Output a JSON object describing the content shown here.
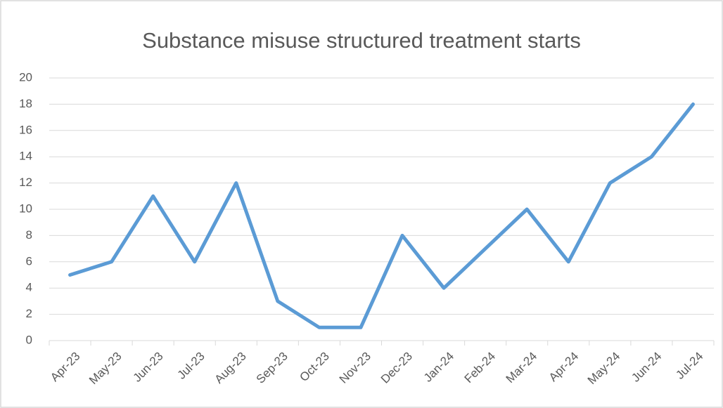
{
  "chart_data": {
    "type": "line",
    "title": "Substance misuse structured treatment starts",
    "categories": [
      "Apr-23",
      "May-23",
      "Jun-23",
      "Jul-23",
      "Aug-23",
      "Sep-23",
      "Oct-23",
      "Nov-23",
      "Dec-23",
      "Jan-24",
      "Feb-24",
      "Mar-24",
      "Apr-24",
      "May-24",
      "Jun-24",
      "Jul-24"
    ],
    "values": [
      5,
      6,
      11,
      6,
      12,
      3,
      1,
      1,
      8,
      4,
      7,
      10,
      6,
      12,
      14,
      18
    ],
    "color": "#5b9bd5",
    "ylim": [
      0,
      20
    ],
    "yticks": [
      0,
      2,
      4,
      6,
      8,
      10,
      12,
      14,
      16,
      18,
      20
    ],
    "grid": true
  }
}
